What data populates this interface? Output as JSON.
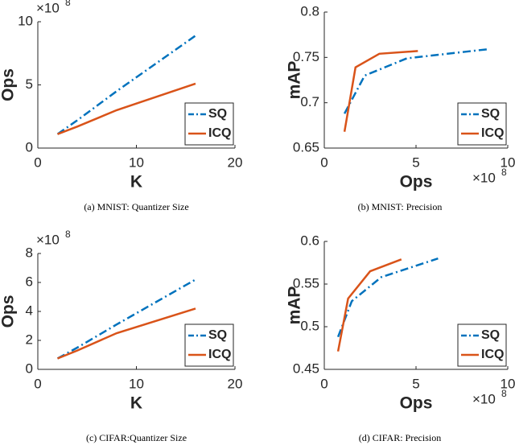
{
  "chart_data": [
    {
      "type": "line",
      "caption": "(a) MNIST: Quantizer Size",
      "xlabel": "K",
      "ylabel": "Ops",
      "y_multiplier": "×10",
      "y_multiplier_exponent": "8",
      "xlim": [
        0,
        20
      ],
      "xticks": [
        0,
        10,
        20
      ],
      "ylim": [
        0,
        10
      ],
      "yticks": [
        0,
        5,
        10
      ],
      "legend": "lower right",
      "series": [
        {
          "name": "SQ",
          "color": "#0072bd",
          "dash": "dashdot",
          "x": [
            2,
            4,
            8,
            16
          ],
          "values": [
            1.1,
            2.2,
            4.5,
            8.9
          ]
        },
        {
          "name": "ICQ",
          "color": "#d95319",
          "dash": "solid",
          "x": [
            2,
            4,
            8,
            16
          ],
          "values": [
            1.1,
            1.7,
            3.0,
            5.1
          ]
        }
      ]
    },
    {
      "type": "line",
      "caption": "(b) MNIST: Precision",
      "xlabel": "Ops",
      "ylabel": "mAP",
      "x_multiplier": "×10",
      "x_multiplier_exponent": "8",
      "xlim": [
        0,
        10
      ],
      "xticks": [
        0,
        5,
        10
      ],
      "ylim": [
        0.65,
        0.8
      ],
      "yticks": [
        0.65,
        0.7,
        0.75,
        0.8
      ],
      "legend": "lower right",
      "series": [
        {
          "name": "SQ",
          "color": "#0072bd",
          "dash": "dashdot",
          "x": [
            1.1,
            2.2,
            4.5,
            8.9
          ],
          "values": [
            0.688,
            0.73,
            0.749,
            0.759
          ]
        },
        {
          "name": "ICQ",
          "color": "#d95319",
          "dash": "solid",
          "x": [
            1.1,
            1.7,
            3.0,
            5.1
          ],
          "values": [
            0.668,
            0.739,
            0.754,
            0.757
          ]
        }
      ]
    },
    {
      "type": "line",
      "caption": "(c) CIFAR:Quantizer Size",
      "xlabel": "K",
      "ylabel": "Ops",
      "y_multiplier": "×10",
      "y_multiplier_exponent": "8",
      "xlim": [
        0,
        20
      ],
      "xticks": [
        0,
        10,
        20
      ],
      "ylim": [
        0,
        8
      ],
      "yticks": [
        0,
        2,
        4,
        6,
        8
      ],
      "legend": "lower right",
      "series": [
        {
          "name": "SQ",
          "color": "#0072bd",
          "dash": "dashdot",
          "x": [
            2,
            4,
            8,
            16
          ],
          "values": [
            0.75,
            1.5,
            3.1,
            6.2
          ]
        },
        {
          "name": "ICQ",
          "color": "#d95319",
          "dash": "solid",
          "x": [
            2,
            4,
            8,
            16
          ],
          "values": [
            0.75,
            1.3,
            2.5,
            4.2
          ]
        }
      ]
    },
    {
      "type": "line",
      "caption": "(d) CIFAR: Precision",
      "xlabel": "Ops",
      "ylabel": "mAP",
      "x_multiplier": "×10",
      "x_multiplier_exponent": "8",
      "xlim": [
        0,
        10
      ],
      "xticks": [
        0,
        5,
        10
      ],
      "ylim": [
        0.45,
        0.6
      ],
      "yticks": [
        0.45,
        0.5,
        0.55,
        0.6
      ],
      "legend": "lower right",
      "series": [
        {
          "name": "SQ",
          "color": "#0072bd",
          "dash": "dashdot",
          "x": [
            0.75,
            1.5,
            3.1,
            6.2
          ],
          "values": [
            0.488,
            0.53,
            0.558,
            0.58
          ]
        },
        {
          "name": "ICQ",
          "color": "#d95319",
          "dash": "solid",
          "x": [
            0.75,
            1.3,
            2.5,
            4.2
          ],
          "values": [
            0.471,
            0.533,
            0.565,
            0.579
          ]
        }
      ]
    }
  ]
}
